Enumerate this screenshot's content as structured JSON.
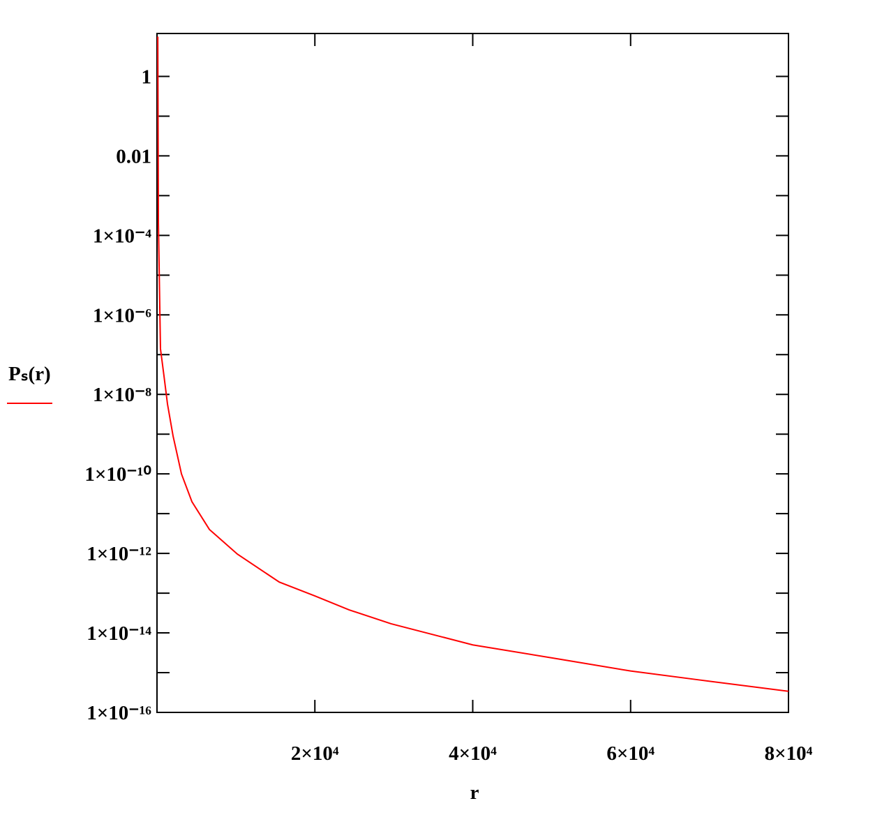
{
  "chart_data": {
    "type": "line",
    "xlabel": "r",
    "x": [
      100,
      180,
      440,
      885,
      1330,
      2035,
      3100,
      4425,
      6640,
      10180,
      15490,
      20000,
      24340,
      29650,
      40000,
      50900,
      60000,
      68600,
      80000
    ],
    "series": [
      {
        "name": "Pₛ(r)",
        "color": "#ff0000",
        "values": [
          10,
          0.0002,
          1.4e-07,
          2.9e-08,
          5.7e-09,
          9e-10,
          1e-10,
          2e-11,
          4e-12,
          9.6e-13,
          1.9e-13,
          8.5e-14,
          3.8e-14,
          1.7e-14,
          5e-15,
          2.2e-15,
          1.1e-15,
          6.6e-16,
          3.4e-16
        ]
      }
    ],
    "xlim": [
      0,
      80000
    ],
    "xticks": [
      {
        "value": 20000,
        "label": "2×10⁴"
      },
      {
        "value": 40000,
        "label": "4×10⁴"
      },
      {
        "value": 60000,
        "label": "6×10⁴"
      },
      {
        "value": 80000,
        "label": "8×10⁴"
      }
    ],
    "ylim": [
      1e-16,
      12
    ],
    "ylog": true,
    "yticks": [
      1,
      0.01,
      {
        "value": 0.0001,
        "label": "1×10⁻⁴"
      },
      {
        "value": 1e-06,
        "label": "1×10⁻⁶"
      },
      {
        "value": 1e-08,
        "label": "1×10⁻⁸"
      },
      {
        "value": 1e-10,
        "label": "1×10⁻¹⁰"
      },
      {
        "value": 1e-12,
        "label": "1×10⁻¹²"
      },
      {
        "value": 1e-14,
        "label": "1×10⁻¹⁴"
      },
      {
        "value": 1e-16,
        "label": "1×10⁻¹⁶"
      }
    ],
    "yminorticks": [
      0.1,
      0.001,
      1e-05,
      1e-07,
      1e-09,
      1e-11,
      1e-13,
      1e-15
    ],
    "grid": false
  }
}
